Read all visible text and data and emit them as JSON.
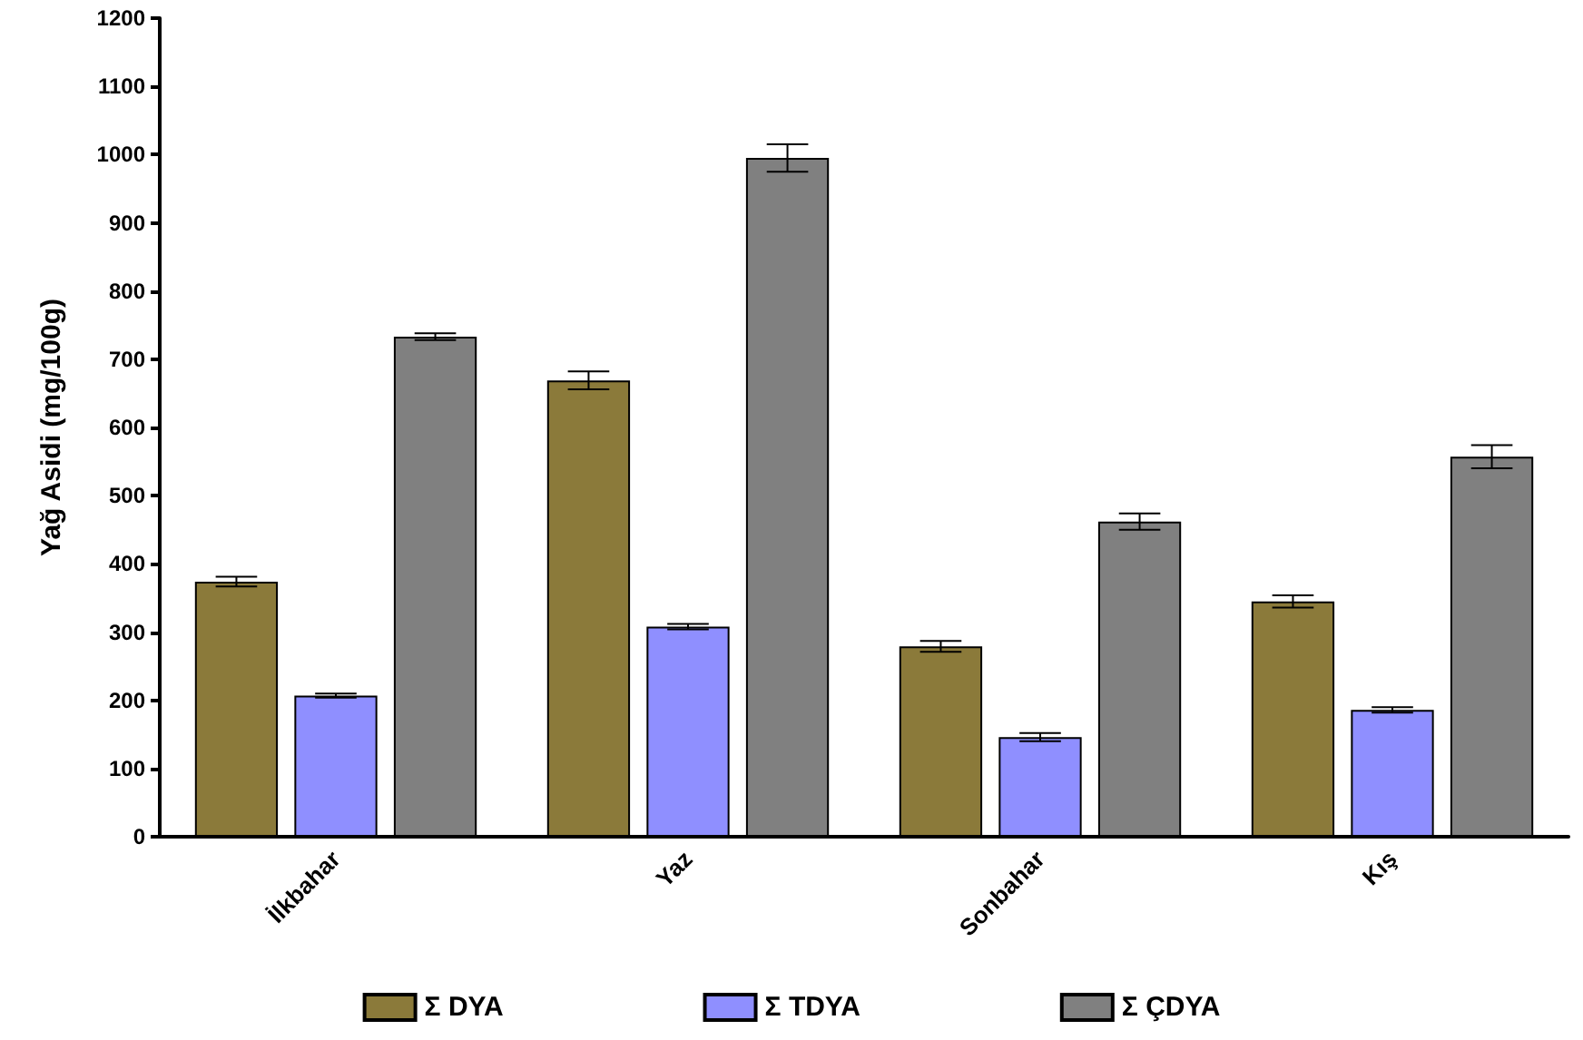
{
  "chart_data": {
    "type": "bar",
    "ylabel": "Yağ Asidi (mg/100g)",
    "categories": [
      "İlkbahar",
      "Yaz",
      "Sonbahar",
      "Kış"
    ],
    "series": [
      {
        "name": "Σ DYA",
        "color": "#8b7a3a",
        "values": [
          374,
          669,
          279,
          345
        ],
        "errors": [
          7,
          13,
          8,
          9
        ]
      },
      {
        "name": "Σ TDYA",
        "color": "#8f8fff",
        "values": [
          207,
          308,
          146,
          186
        ],
        "errors": [
          3,
          4,
          6,
          4
        ]
      },
      {
        "name": "Σ ÇDYA",
        "color": "#808080",
        "values": [
          733,
          995,
          462,
          557
        ],
        "errors": [
          5,
          20,
          12,
          17
        ]
      }
    ],
    "ylim": [
      0,
      1200
    ],
    "yticks": [
      0,
      100,
      200,
      300,
      400,
      500,
      600,
      700,
      800,
      900,
      1000,
      1100,
      1200
    ],
    "legend": "bottom"
  }
}
